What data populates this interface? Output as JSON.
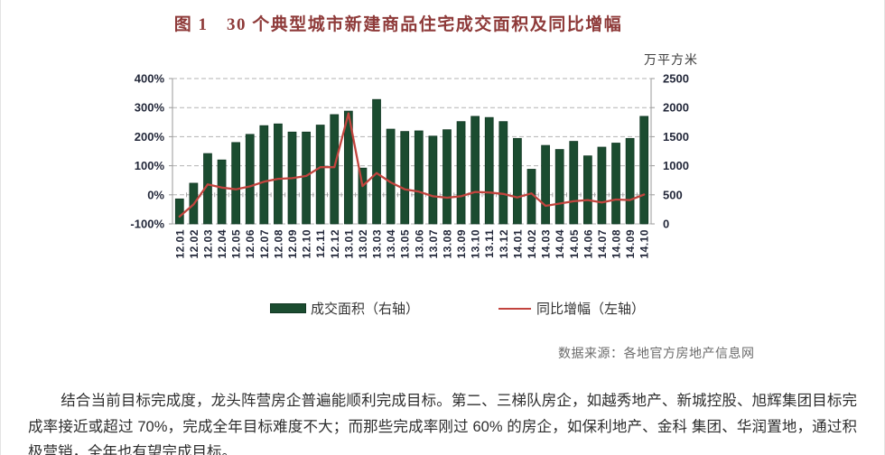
{
  "title": "图 1　30 个典型城市新建商品住宅成交面积及同比增幅",
  "legend": {
    "bar_label": "成交面积（右轴）",
    "line_label": "同比增幅（左轴）"
  },
  "source": "数据来源：各地官方房地产信息网",
  "paragraph": "结合当前目标完成度，龙头阵营房企普遍能顺利完成目标。第二、三梯队房企，如越秀地产、新城控股、旭辉集团目标完成率接近或超过 70%，完成全年目标难度不大；而那些完成率刚过 60% 的房企，如保利地产、金科 集团、华润置地，通过积极营销，全年也有望完成目标。",
  "colors": {
    "title": "#8e3a39",
    "bar": "#1b4c30",
    "bar_stroke": "#123824",
    "line": "#c2443e",
    "grid": "#b3b3b3",
    "axis": "#9a9a9a",
    "tick_text": "#23283a",
    "source_text": "#6b6b6b"
  },
  "chart_data": {
    "type": "bar",
    "subtype": "combo-bar-line",
    "title": "30 个典型城市新建商品住宅成交面积及同比增幅",
    "categories": [
      "12.01",
      "12.02",
      "12.03",
      "12.04",
      "12.05",
      "12.06",
      "12.07",
      "12.08",
      "12.09",
      "12.10",
      "12.11",
      "12.12",
      "13.01",
      "13.02",
      "13.03",
      "13.04",
      "13.05",
      "13.06",
      "13.07",
      "13.08",
      "13.09",
      "13.10",
      "13.11",
      "13.12",
      "14.01",
      "14.02",
      "14.03",
      "14.04",
      "14.05",
      "14.06",
      "14.07",
      "14.08",
      "14.09",
      "14.10"
    ],
    "series": [
      {
        "name": "成交面积（右轴）",
        "type": "bar",
        "axis": "right",
        "unit": "万平方米",
        "values": [
          430,
          700,
          1210,
          1100,
          1400,
          1540,
          1690,
          1720,
          1580,
          1580,
          1700,
          1880,
          1940,
          960,
          2140,
          1630,
          1590,
          1600,
          1510,
          1620,
          1760,
          1850,
          1830,
          1760,
          1470,
          940,
          1350,
          1280,
          1420,
          1170,
          1320,
          1390,
          1470,
          1850
        ]
      },
      {
        "name": "同比增幅（左轴）",
        "type": "line",
        "axis": "left",
        "unit": "%",
        "values": [
          -75,
          -33,
          36,
          25,
          19,
          29,
          45,
          55,
          57,
          65,
          95,
          95,
          280,
          30,
          75,
          43,
          19,
          11,
          -5,
          -10,
          -5,
          10,
          8,
          3,
          -9,
          5,
          -38,
          -30,
          -22,
          -18,
          -26,
          -16,
          -18,
          1
        ]
      }
    ],
    "left_axis": {
      "min": -100,
      "max": 400,
      "tick_values": [
        400,
        300,
        200,
        100,
        0,
        -100
      ],
      "tick_labels": [
        "400%",
        "300%",
        "200%",
        "100%",
        "0%",
        "-100%"
      ]
    },
    "right_axis": {
      "min": 0,
      "max": 2500,
      "tick_labels": [
        "2500",
        "2000",
        "1500",
        "1000",
        "500",
        "0"
      ],
      "unit": "万平方米"
    },
    "grid": "horizontal-dashed",
    "legend_position": "bottom"
  }
}
